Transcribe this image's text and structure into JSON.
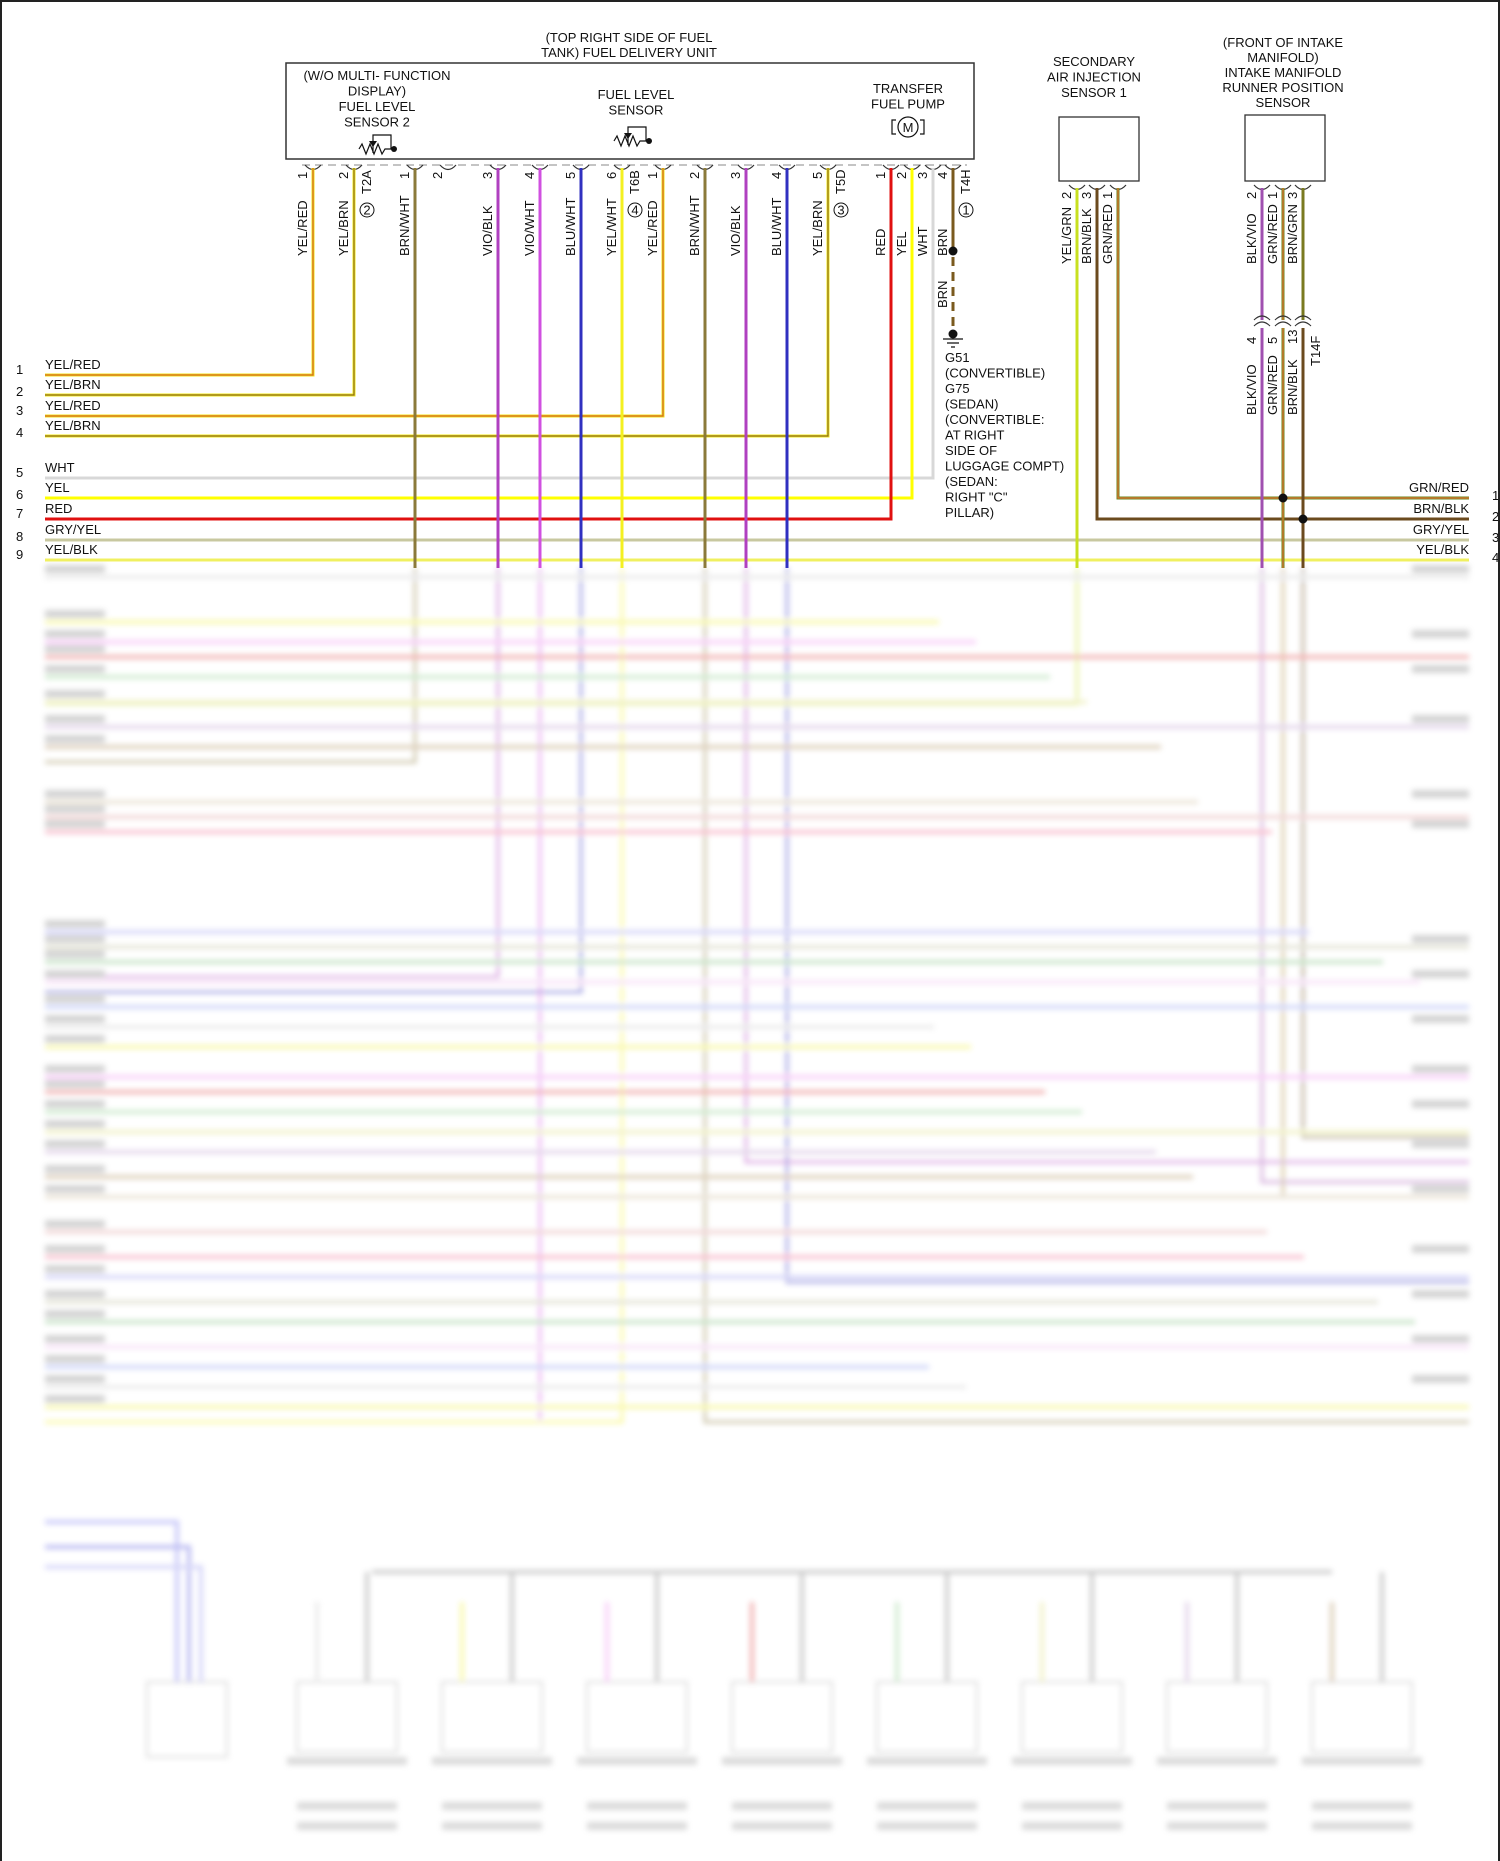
{
  "fuel_delivery_unit": {
    "title": [
      "(TOP RIGHT SIDE OF FUEL",
      "TANK) FUEL DELIVERY UNIT"
    ],
    "sensor2": [
      "(W/O MULTI- FUNCTION",
      "DISPLAY)",
      "FUEL LEVEL",
      "SENSOR 2"
    ],
    "fuel_level_sensor": [
      "FUEL LEVEL",
      "SENSOR"
    ],
    "transfer_pump": [
      "TRANSFER",
      "FUEL PUMP"
    ],
    "motor_symbol": "M"
  },
  "connectors": [
    {
      "id": "T2A",
      "badge": "2",
      "pins": [
        {
          "num": "1",
          "wire": "YEL/RED"
        },
        {
          "num": "2",
          "wire": "YEL/BRN"
        }
      ]
    },
    {
      "id": "T6B",
      "badge": "4",
      "pins": [
        {
          "num": "1",
          "wire": "BRN/WHT"
        },
        {
          "num": "2",
          "wire": ""
        },
        {
          "num": "3",
          "wire": "VIO/BLK"
        },
        {
          "num": "4",
          "wire": "VIO/WHT"
        },
        {
          "num": "5",
          "wire": "BLU/WHT"
        },
        {
          "num": "6",
          "wire": "YEL/WHT"
        }
      ]
    },
    {
      "id": "T5D",
      "badge": "3",
      "pins": [
        {
          "num": "1",
          "wire": "YEL/RED"
        },
        {
          "num": "2",
          "wire": "BRN/WHT"
        },
        {
          "num": "3",
          "wire": "VIO/BLK"
        },
        {
          "num": "4",
          "wire": "BLU/WHT"
        },
        {
          "num": "5",
          "wire": "YEL/BRN"
        }
      ]
    },
    {
      "id": "T4H",
      "badge": "1",
      "pins": [
        {
          "num": "1",
          "wire": "RED"
        },
        {
          "num": "2",
          "wire": "YEL"
        },
        {
          "num": "3",
          "wire": "WHT"
        },
        {
          "num": "4",
          "wire": "BRN"
        }
      ]
    }
  ],
  "ground": {
    "wire": "BRN",
    "label": [
      "G51",
      "(CONVERTIBLE)",
      "G75",
      "(SEDAN)",
      "(CONVERTIBLE:",
      "AT RIGHT",
      "SIDE OF",
      "LUGGAGE COMPT)",
      "(SEDAN:",
      "RIGHT \"C\"",
      "PILLAR)"
    ]
  },
  "secondary_air_sensor": {
    "title": [
      "SECONDARY",
      "AIR INJECTION",
      "SENSOR 1"
    ],
    "pins": [
      {
        "num": "2",
        "wire": "YEL/GRN"
      },
      {
        "num": "3",
        "wire": "BRN/BLK"
      },
      {
        "num": "1",
        "wire": "GRN/RED"
      }
    ]
  },
  "intake_runner_sensor": {
    "title": [
      "(FRONT OF INTAKE",
      "MANIFOLD)",
      "INTAKE MANIFOLD",
      "RUNNER POSITION",
      "SENSOR"
    ],
    "pins": [
      {
        "num": "2",
        "wire": "BLK/VIO"
      },
      {
        "num": "1",
        "wire": "GRN/RED"
      },
      {
        "num": "3",
        "wire": "BRN/GRN"
      }
    ],
    "inline_connector": {
      "id": "T14F",
      "pins": [
        {
          "num": "4",
          "wire": "BLK/VIO"
        },
        {
          "num": "5",
          "wire": "GRN/RED"
        },
        {
          "num": "13",
          "wire": "BRN/BLK"
        }
      ]
    }
  },
  "left_rows": [
    {
      "num": "1",
      "wire": "YEL/RED"
    },
    {
      "num": "2",
      "wire": "YEL/BRN"
    },
    {
      "num": "3",
      "wire": "YEL/RED"
    },
    {
      "num": "4",
      "wire": "YEL/BRN"
    },
    {
      "num": "5",
      "wire": "WHT"
    },
    {
      "num": "6",
      "wire": "YEL"
    },
    {
      "num": "7",
      "wire": "RED"
    },
    {
      "num": "8",
      "wire": "GRY/YEL"
    },
    {
      "num": "9",
      "wire": "YEL/BLK"
    }
  ],
  "right_rows": [
    {
      "num": "1",
      "wire": "GRN/RED"
    },
    {
      "num": "2",
      "wire": "BRN/BLK"
    },
    {
      "num": "3",
      "wire": "GRY/YEL"
    },
    {
      "num": "4",
      "wire": "YEL/BLK"
    }
  ],
  "wire_colors": {
    "YEL/RED": [
      "#f2e21a",
      "#d2691e"
    ],
    "YEL/BRN": [
      "#f2ea1a",
      "#8b6b1e"
    ],
    "BRN/WHT": [
      "#8b7a3a",
      "#8b7a3a"
    ],
    "VIO/BLK": [
      "#b040c0",
      "#b040c0"
    ],
    "VIO/WHT": [
      "#d050e0",
      "#d050e0"
    ],
    "BLU/WHT": [
      "#3030c0",
      "#3030c0"
    ],
    "YEL/WHT": [
      "#f4f020",
      "#f4f020"
    ],
    "RED": [
      "#e01010",
      "#e01010"
    ],
    "YEL": [
      "#ffff00",
      "#ffff00"
    ],
    "WHT": [
      "#d8d8d8",
      "#d8d8d8"
    ],
    "BRN": [
      "#7a5a1e",
      "#7a5a1e"
    ],
    "YEL/GRN": [
      "#c8e020",
      "#c8e020"
    ],
    "BRN/BLK": [
      "#6b4a1e",
      "#6b4a1e"
    ],
    "GRN/RED": [
      "#6a8a20",
      "#e07030"
    ],
    "BLK/VIO": [
      "#a050b0",
      "#a050b0"
    ],
    "BRN/GRN": [
      "#7a7a20",
      "#7a7a20"
    ],
    "GRY/YEL": [
      "#c8c8a0",
      "#c8c8a0"
    ],
    "YEL/BLK": [
      "#f0f060",
      "#f0f060"
    ]
  }
}
